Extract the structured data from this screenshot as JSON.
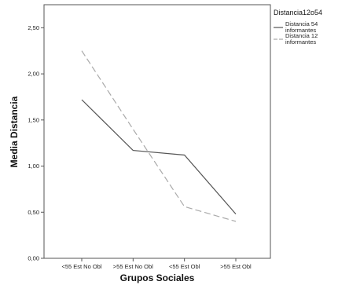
{
  "chart_data": {
    "type": "line",
    "categories": [
      "<55 Est No Obl",
      ">55 Est No Obl",
      "<55 Est Obl",
      ">55 Est Obl"
    ],
    "series": [
      {
        "name": "Distancia 54 informantes",
        "name_lines": [
          "Distancia 54",
          "informantes"
        ],
        "values": [
          1.72,
          1.17,
          1.12,
          0.48
        ],
        "color": "#555555",
        "dashed": false
      },
      {
        "name": "Distancia 12 informantes",
        "name_lines": [
          "Distancia 12",
          "informantes"
        ],
        "values": [
          2.25,
          1.4,
          0.56,
          0.4
        ],
        "color": "#aaaaaa",
        "dashed": true
      }
    ],
    "title": "",
    "xlabel": "Grupos Sociales",
    "ylabel": "Media Distancia",
    "ylim": [
      0,
      2.75
    ],
    "yticks": [
      0,
      0.5,
      1,
      1.5,
      2,
      2.5
    ],
    "ytick_labels": [
      "0,00",
      "0,50",
      "1,00",
      "1,50",
      "2,00",
      "2,50"
    ],
    "grid": false,
    "legend": {
      "title": "Distancia12o54",
      "position": "right"
    }
  }
}
